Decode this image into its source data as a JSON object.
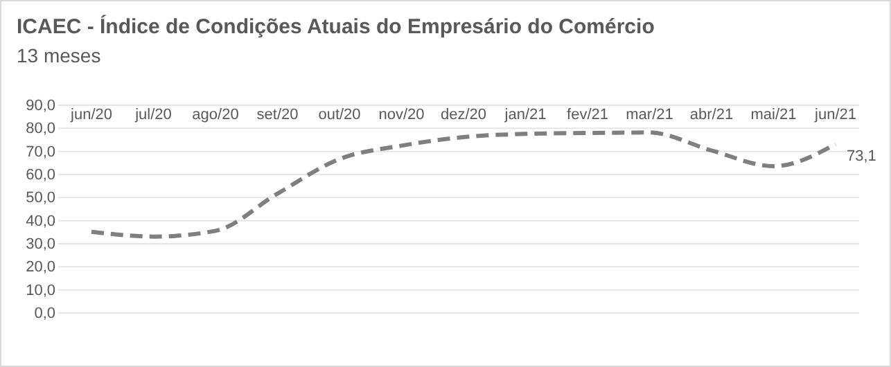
{
  "chart_data": {
    "type": "line",
    "title": "ICAEC - Índice de Condições Atuais do Empresário do Comércio",
    "subtitle": "13 meses",
    "categories": [
      "jun/20",
      "jul/20",
      "ago/20",
      "set/20",
      "out/20",
      "nov/20",
      "dez/20",
      "jan/21",
      "fev/21",
      "mar/21",
      "abr/21",
      "mai/21",
      "jun/21"
    ],
    "series": [
      {
        "color": "#7f7f7f",
        "values": [
          35.2,
          33.1,
          35.6,
          51.7,
          66.7,
          72.5,
          76.2,
          77.6,
          78.0,
          78.2,
          70.4,
          63.6,
          73.1
        ],
        "value_labels": [
          null,
          null,
          null,
          null,
          null,
          null,
          null,
          null,
          null,
          null,
          null,
          null,
          "73,1"
        ]
      }
    ],
    "ylim": [
      0,
      90
    ],
    "yticks": [
      {
        "value": 0,
        "label": "0,0"
      },
      {
        "value": 10,
        "label": "10,0"
      },
      {
        "value": 20,
        "label": "20,0"
      },
      {
        "value": 30,
        "label": "30,0"
      },
      {
        "value": 40,
        "label": "40,0"
      },
      {
        "value": 50,
        "label": "50,0"
      },
      {
        "value": 60,
        "label": "60,0"
      },
      {
        "value": 70,
        "label": "70,0"
      },
      {
        "value": 80,
        "label": "80,0"
      },
      {
        "value": 90,
        "label": "90,0"
      }
    ],
    "grid": "y",
    "line_style": "dashed",
    "marker": "none"
  }
}
